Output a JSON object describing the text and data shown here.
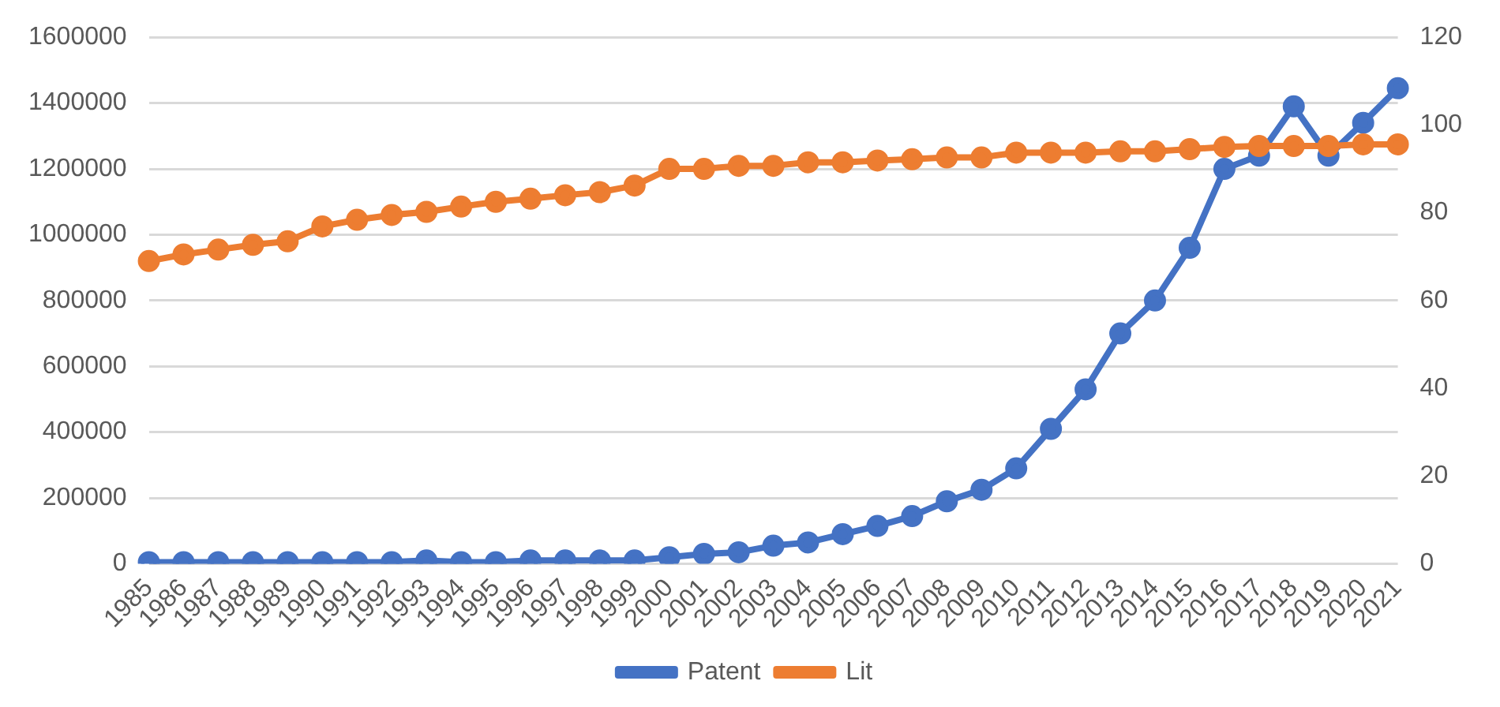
{
  "chart_data": {
    "type": "line",
    "categories": [
      "1985",
      "1986",
      "1987",
      "1988",
      "1989",
      "1990",
      "1991",
      "1992",
      "1993",
      "1994",
      "1995",
      "1996",
      "1997",
      "1998",
      "1999",
      "2000",
      "2001",
      "2002",
      "2003",
      "2004",
      "2005",
      "2006",
      "2007",
      "2008",
      "2009",
      "2010",
      "2011",
      "2012",
      "2013",
      "2014",
      "2015",
      "2016",
      "2017",
      "2018",
      "2019",
      "2020",
      "2021"
    ],
    "series": [
      {
        "name": "Patent",
        "color": "#4472c4",
        "values": [
          5000,
          5000,
          5000,
          5000,
          5000,
          5000,
          5000,
          5000,
          10000,
          5000,
          5000,
          10000,
          10000,
          10000,
          10000,
          20000,
          30000,
          35000,
          55000,
          65000,
          90000,
          115000,
          145000,
          190000,
          225000,
          290000,
          410000,
          530000,
          700000,
          800000,
          960000,
          1200000,
          1240000,
          1390000,
          1240000,
          1340000,
          1445000
        ]
      },
      {
        "name": "Lit",
        "color": "#ed7d31",
        "axis": "y2",
        "values": [
          69,
          70.5,
          71.6,
          72.7,
          73.5,
          76.9,
          78.4,
          79.5,
          80.2,
          81.4,
          82.5,
          83.2,
          84,
          84.7,
          86.2,
          90,
          90,
          90.7,
          90.7,
          91.5,
          91.5,
          91.9,
          92.2,
          92.6,
          92.6,
          93.7,
          93.7,
          93.7,
          94,
          94,
          94.5,
          95,
          95.2,
          95.2,
          95.2,
          95.6,
          95.6
        ]
      }
    ],
    "ylim": [
      0,
      1600000
    ],
    "yticks": [
      0,
      200000,
      400000,
      600000,
      800000,
      1000000,
      1200000,
      1400000,
      1600000
    ],
    "y2lim": [
      0,
      120
    ],
    "y2ticks": [
      0,
      20,
      40,
      60,
      80,
      100,
      120
    ],
    "grid": "y",
    "legend": "bottom",
    "marker": "circle",
    "line_style": "solid"
  }
}
